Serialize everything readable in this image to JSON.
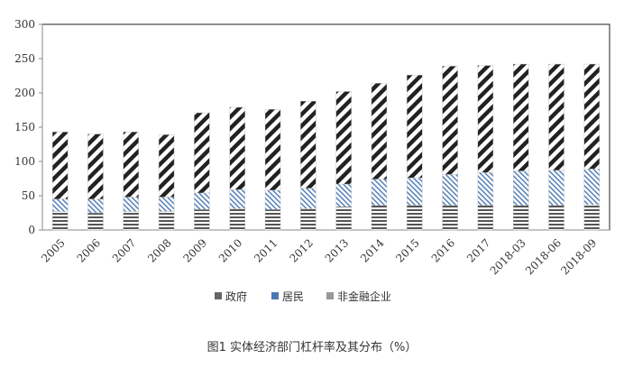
{
  "chart_data": {
    "type": "bar",
    "stacked": true,
    "categories": [
      "2005",
      "2006",
      "2007",
      "2008",
      "2009",
      "2010",
      "2011",
      "2012",
      "2013",
      "2014",
      "2015",
      "2016",
      "2017",
      "2018-03",
      "2018-06",
      "2018-09"
    ],
    "series": [
      {
        "name": "政府",
        "values": [
          27,
          25,
          27,
          27,
          30,
          31,
          30,
          31,
          34,
          36,
          36,
          36,
          36,
          36,
          36,
          37
        ],
        "color": "#555555",
        "pattern": "horizontal-stripes"
      },
      {
        "name": "居民",
        "values": [
          18,
          20,
          21,
          21,
          24,
          28,
          28,
          30,
          33,
          38,
          40,
          45,
          48,
          50,
          51,
          52
        ],
        "color": "#4a78b5",
        "pattern": "diagonal-hatch"
      },
      {
        "name": "非金融企业",
        "values": [
          98,
          95,
          95,
          91,
          117,
          120,
          118,
          127,
          135,
          140,
          150,
          158,
          156,
          156,
          155,
          153
        ],
        "color": "#222222",
        "pattern": "bold-diagonal-stripes"
      }
    ],
    "yticks": [
      0,
      50,
      100,
      150,
      200,
      250,
      300
    ],
    "ylim": [
      0,
      300
    ],
    "xlabel": "",
    "ylabel": "",
    "grid": false,
    "legend_position": "bottom",
    "caption": "图1 实体经济部门杠杆率及其分布（%）"
  },
  "colors": {
    "axis": "#888888",
    "frame": "#222222",
    "tick_label": "#333333",
    "caption": "#333333"
  }
}
